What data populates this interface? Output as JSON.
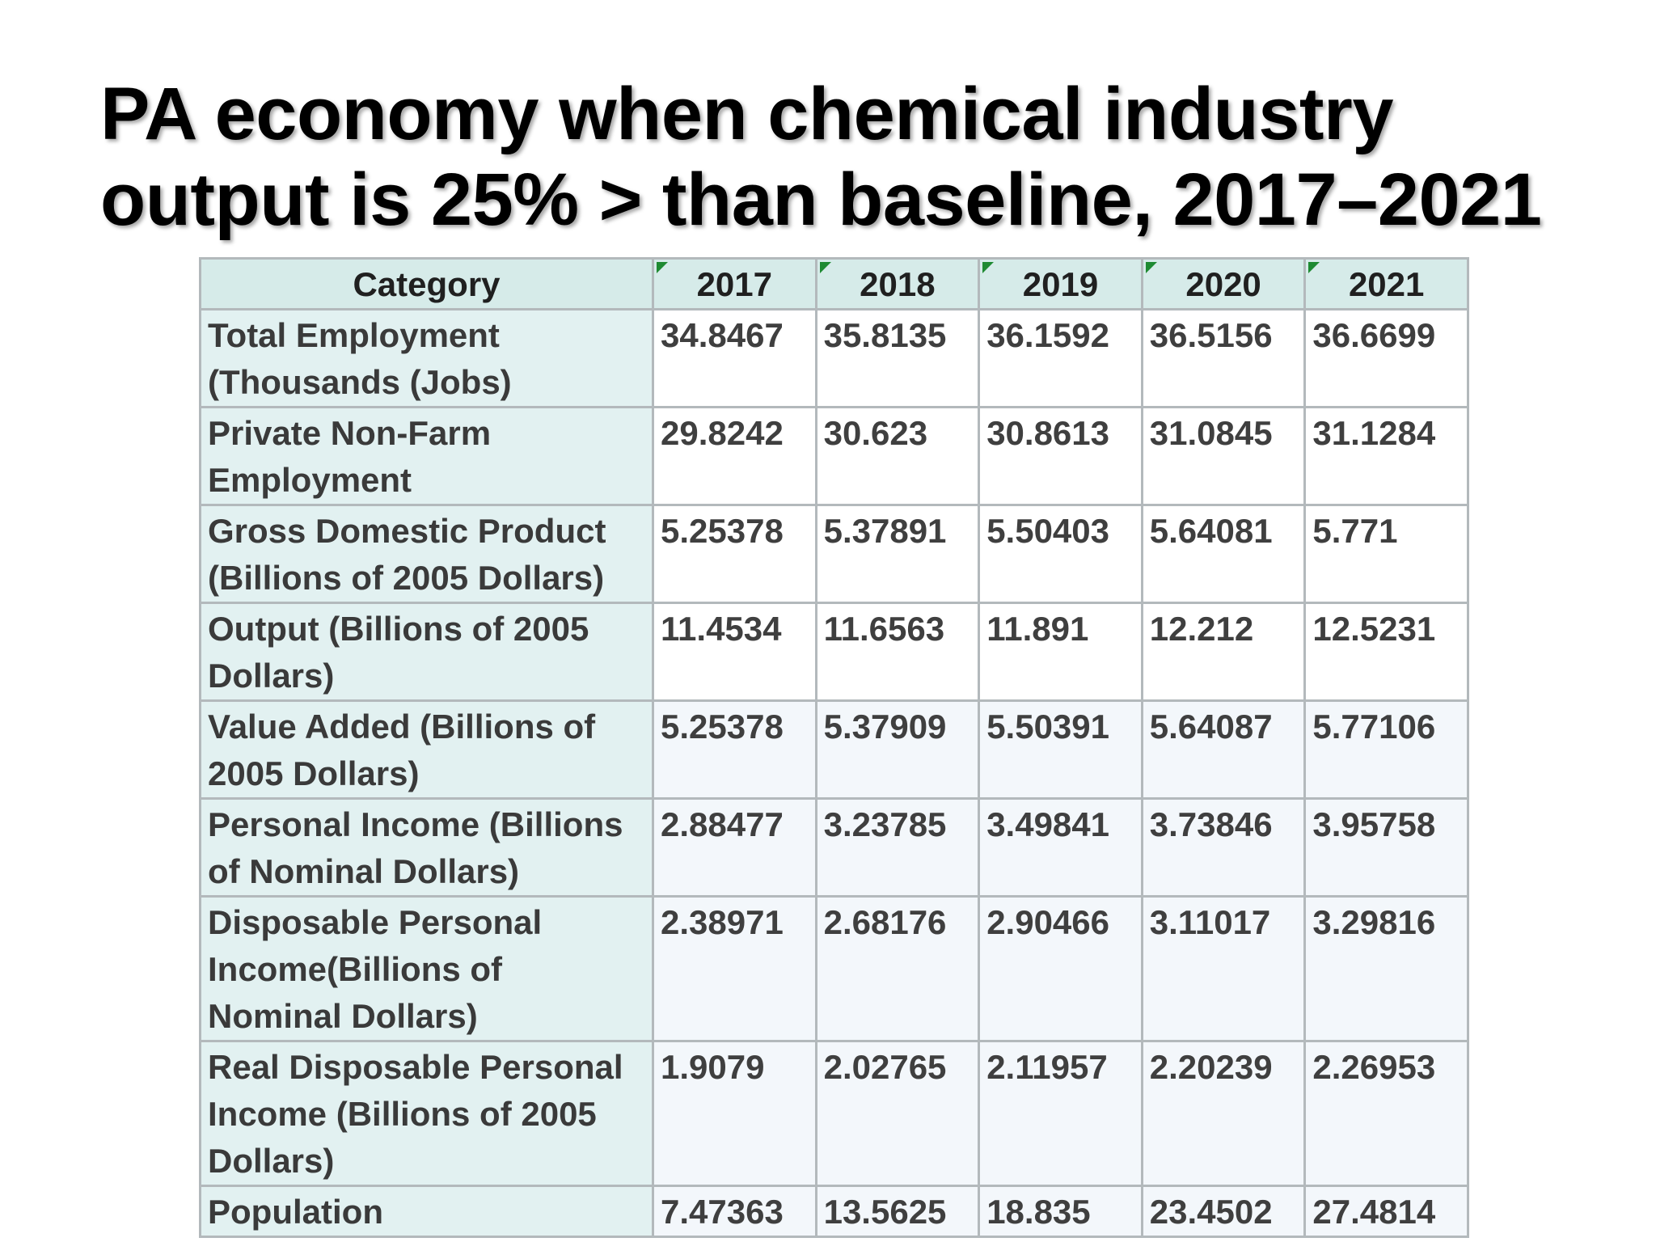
{
  "title": {
    "line1": "PA economy when chemical industry",
    "line2": "output is 25% > than baseline, 2017–2021"
  },
  "table": {
    "columns": [
      "Category",
      "2017",
      "2018",
      "2019",
      "2020",
      "2021"
    ],
    "rows": [
      {
        "category": "Total Employment (Thousands (Jobs)",
        "values": [
          "34.8467",
          "35.8135",
          "36.1592",
          "36.5156",
          "36.6699"
        ]
      },
      {
        "category": "Private Non-Farm Employment",
        "values": [
          "29.8242",
          "30.623",
          "30.8613",
          "31.0845",
          "31.1284"
        ]
      },
      {
        "category": "Gross Domestic Product (Billions of 2005 Dollars)",
        "values": [
          "5.25378",
          "5.37891",
          "5.50403",
          "5.64081",
          "5.771"
        ]
      },
      {
        "category": "Output (Billions of 2005 Dollars)",
        "values": [
          "11.4534",
          "11.6563",
          "11.891",
          "12.212",
          "12.5231"
        ]
      },
      {
        "category": "Value Added (Billions of 2005 Dollars)",
        "values": [
          "5.25378",
          "5.37909",
          "5.50391",
          "5.64087",
          "5.77106"
        ]
      },
      {
        "category": "Personal Income (Billions of Nominal Dollars)",
        "values": [
          "2.88477",
          "3.23785",
          "3.49841",
          "3.73846",
          "3.95758"
        ]
      },
      {
        "category": "Disposable Personal Income(Billions of Nominal Dollars)",
        "values": [
          "2.38971",
          "2.68176",
          "2.90466",
          "3.11017",
          "3.29816"
        ]
      },
      {
        "category": "Real Disposable Personal Income (Billions of 2005 Dollars)",
        "values": [
          "1.9079",
          "2.02765",
          "2.11957",
          "2.20239",
          "2.26953"
        ]
      },
      {
        "category": "Population",
        "values": [
          "7.47363",
          "13.5625",
          "18.835",
          "23.4502",
          "27.4814"
        ]
      }
    ]
  },
  "colors": {
    "header_bg": "#d6ebe9",
    "category_bg": "#e2f1f1",
    "border": "#b3b9bc",
    "header_marker": "#1e8a32"
  }
}
